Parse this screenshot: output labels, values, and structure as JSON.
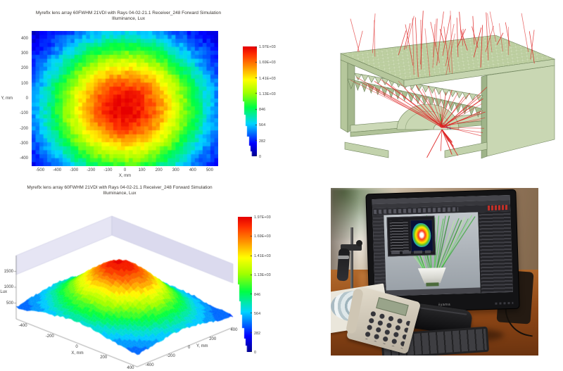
{
  "colors": {
    "colormap_stops": [
      "#00008f",
      "#0000ff",
      "#00d5ff",
      "#00ff44",
      "#a0ff00",
      "#ffff00",
      "#ff9100",
      "#ff3000",
      "#e60000"
    ],
    "colormap_positions": [
      0,
      0.12,
      0.3,
      0.45,
      0.58,
      0.7,
      0.82,
      0.93,
      1
    ],
    "wall_lavender": "#dbdaee",
    "ray_red": "#dd2020"
  },
  "chart_data": [
    {
      "type": "heatmap",
      "title": "Myreflx lens array 60FWHM 21VDI with Rays 04-02-21.1 Receiver_248 Forward Simulation",
      "subtitle": "Illuminance, Lux",
      "xlabel": "X, mm",
      "ylabel": "Y, mm",
      "xlim": [
        -550,
        550
      ],
      "ylim": [
        -450,
        450
      ],
      "x_ticks": [
        -500,
        -400,
        -300,
        -200,
        -100,
        0,
        100,
        200,
        300,
        400,
        500
      ],
      "y_ticks": [
        400,
        300,
        200,
        100,
        0,
        -100,
        -200,
        -300,
        -400
      ],
      "zlim": [
        0,
        1974
      ],
      "peak_lux": 1974,
      "center_mm": [
        0,
        -60
      ],
      "falloff_sigma_mm": 460,
      "colorbar_tick_labels": [
        "1.97E+03",
        "1.69E+03",
        "1.41E+03",
        "1.13E+03",
        "846",
        "564",
        "282",
        "0"
      ],
      "grid": false,
      "legend_position": "right colorbar"
    },
    {
      "type": "surface",
      "title": "Myreflx lens array 60FWHM 21VDI with Rays 04-02-21.1 Receiver_248 Forward Simulation",
      "subtitle": "Illuminance, Lux",
      "xlabel": "X, mm",
      "ylabel": "Y, mm",
      "zlabel": "Lux",
      "xlim": [
        -450,
        450
      ],
      "ylim": [
        -450,
        450
      ],
      "zlim": [
        0,
        2000
      ],
      "x_ticks": [
        -400,
        -200,
        0,
        200,
        400
      ],
      "y_ticks": [
        400,
        200,
        0,
        -200,
        -400
      ],
      "z_ticks": [
        500,
        1000,
        1500
      ],
      "base_lux": 300,
      "peak_lux": 1950,
      "falloff_sigma_mm": 340,
      "colorbar_tick_labels": [
        "1.97E+03",
        "1.69E+03",
        "1.41E+03",
        "1.13E+03",
        "846",
        "564",
        "282",
        "0"
      ],
      "grid": false,
      "legend_position": "right colorbar"
    }
  ],
  "cad": {
    "ray_color": "#dd2020",
    "body_light": "#d2dfc0",
    "body_mid": "#c2d2ac",
    "body_dark": "#9fb489",
    "interior_rays": 34,
    "exterior_rays": 44,
    "down_rays": 9
  },
  "photo": {
    "monitor_brand": "iiyama"
  }
}
